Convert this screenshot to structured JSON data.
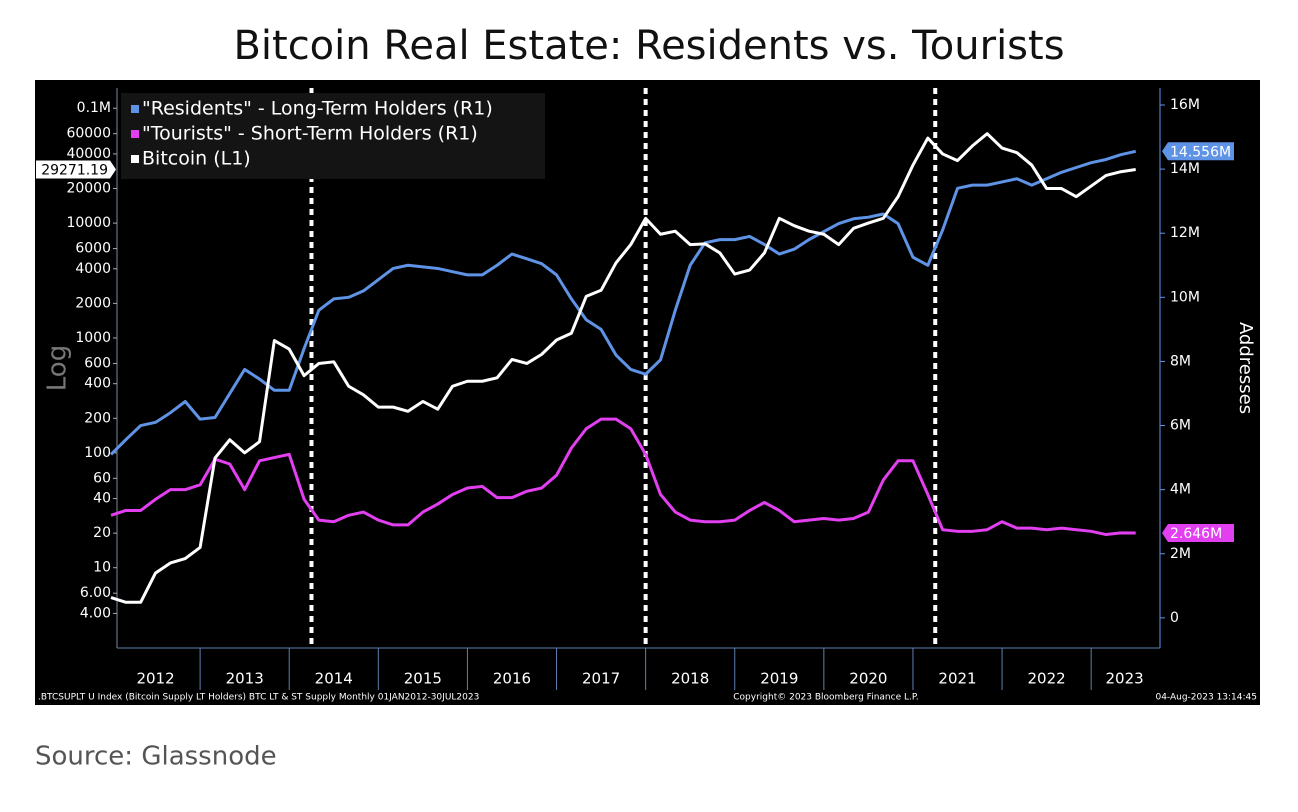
{
  "title": "Bitcoin Real Estate: Residents vs. Tourists",
  "source": "Source: Glassnode",
  "chart_data": {
    "type": "line",
    "ylabel": "Log",
    "y2label": "Addresses",
    "ylog": true,
    "legend": "top-left",
    "footer_left": ".BTCSUPLT U Index (Bitcoin Supply LT Holders) BTC LT & ST Supply  Monthly 01JAN2012-30JUL2023",
    "footer_center": "Copyright© 2023 Bloomberg Finance L.P.",
    "footer_right": "04-Aug-2023 13:14:45",
    "xlim": [
      2012,
      2023.75
    ],
    "xticks": [
      2012,
      2013,
      2014,
      2015,
      2016,
      2017,
      2018,
      2019,
      2020,
      2021,
      2022,
      2023
    ],
    "vlines": [
      2014.25,
      2018,
      2021.25
    ],
    "ylim": [
      2,
      150000
    ],
    "yticks": [
      {
        "value": 100000,
        "label": "0.1M"
      },
      60000,
      40000,
      20000,
      10000,
      6000,
      4000,
      2000,
      1000,
      600,
      400,
      200,
      100,
      60,
      40,
      20,
      10,
      {
        "value": 6,
        "label": "6.00"
      },
      {
        "value": 4,
        "label": "4.00"
      }
    ],
    "y2lim": [
      -940000,
      16530000
    ],
    "y2ticks": [
      {
        "value": 16000000,
        "label": "16M"
      },
      {
        "value": 14000000,
        "label": "14M"
      },
      {
        "value": 12000000,
        "label": "12M"
      },
      {
        "value": 10000000,
        "label": "10M"
      },
      {
        "value": 8000000,
        "label": "8M"
      },
      {
        "value": 6000000,
        "label": "6M"
      },
      {
        "value": 4000000,
        "label": "4M"
      },
      {
        "value": 2000000,
        "label": "2M"
      },
      0
    ],
    "x": [
      2012,
      2012.167,
      2012.333,
      2012.5,
      2012.667,
      2012.833,
      2013,
      2013.167,
      2013.333,
      2013.5,
      2013.667,
      2013.833,
      2014,
      2014.167,
      2014.333,
      2014.5,
      2014.667,
      2014.833,
      2015,
      2015.167,
      2015.333,
      2015.5,
      2015.667,
      2015.833,
      2016,
      2016.167,
      2016.333,
      2016.5,
      2016.667,
      2016.833,
      2017,
      2017.167,
      2017.333,
      2017.5,
      2017.667,
      2017.833,
      2018,
      2018.167,
      2018.333,
      2018.5,
      2018.667,
      2018.833,
      2019,
      2019.167,
      2019.333,
      2019.5,
      2019.667,
      2019.833,
      2020,
      2020.167,
      2020.333,
      2020.5,
      2020.667,
      2020.833,
      2021,
      2021.167,
      2021.333,
      2021.5,
      2021.667,
      2021.833,
      2022,
      2022.167,
      2022.333,
      2022.5,
      2022.667,
      2022.833,
      2023,
      2023.167,
      2023.333,
      2023.5
    ],
    "series": [
      {
        "name": "\"Residents\" - Long-Term Holders (R1)",
        "color": "#5f93e6",
        "axis": "y2",
        "last_label": true,
        "values": [
          5100000,
          5560000,
          6000000,
          6100000,
          6400000,
          6750000,
          6200000,
          6250000,
          7000000,
          7750000,
          7450000,
          7100000,
          7100000,
          8400000,
          9600000,
          9950000,
          10000000,
          10200000,
          10550000,
          10900000,
          11000000,
          10950000,
          10900000,
          10800000,
          10700000,
          10700000,
          11000000,
          11350000,
          11200000,
          11050000,
          10700000,
          9950000,
          9300000,
          9000000,
          8200000,
          7750000,
          7600000,
          8050000,
          9600000,
          11000000,
          11700000,
          11800000,
          11800000,
          11900000,
          11650000,
          11350000,
          11500000,
          11800000,
          12050000,
          12300000,
          12450000,
          12500000,
          12600000,
          12300000,
          11250000,
          11000000,
          12100000,
          13400000,
          13500000,
          13500000,
          13600000,
          13700000,
          13500000,
          13700000,
          13900000,
          14050000,
          14200000,
          14300000,
          14450000,
          14556000
        ],
        "value_labels": [
          null,
          null,
          null,
          null,
          null,
          null,
          null,
          null,
          null,
          null,
          null,
          null,
          null,
          null,
          null,
          null,
          null,
          null,
          null,
          null,
          null,
          null,
          null,
          null,
          null,
          null,
          null,
          null,
          null,
          null,
          null,
          null,
          null,
          null,
          null,
          null,
          null,
          null,
          null,
          null,
          null,
          null,
          null,
          null,
          null,
          null,
          null,
          null,
          null,
          null,
          null,
          null,
          null,
          null,
          null,
          null,
          null,
          null,
          null,
          null,
          null,
          null,
          null,
          null,
          null,
          null,
          null,
          null,
          null,
          "14.556M"
        ]
      },
      {
        "name": "\"Tourists\" - Short-Term Holders (R1)",
        "color": "#e23ff0",
        "axis": "y2",
        "last_label": true,
        "values": [
          3200000,
          3350000,
          3350000,
          3700000,
          4000000,
          4000000,
          4150000,
          4950000,
          4800000,
          4000000,
          4900000,
          5000000,
          5100000,
          3700000,
          3050000,
          3000000,
          3200000,
          3300000,
          3050000,
          2900000,
          2900000,
          3300000,
          3550000,
          3850000,
          4050000,
          4100000,
          3750000,
          3750000,
          3950000,
          4050000,
          4450000,
          5300000,
          5900000,
          6200000,
          6200000,
          5900000,
          5100000,
          3850000,
          3300000,
          3050000,
          3000000,
          3000000,
          3050000,
          3350000,
          3600000,
          3350000,
          3000000,
          3050000,
          3100000,
          3050000,
          3100000,
          3300000,
          4300000,
          4900000,
          4900000,
          3850000,
          2750000,
          2700000,
          2700000,
          2750000,
          3000000,
          2800000,
          2800000,
          2750000,
          2800000,
          2750000,
          2700000,
          2600000,
          2650000,
          2646000
        ],
        "value_labels": [
          null,
          null,
          null,
          null,
          null,
          null,
          null,
          null,
          null,
          null,
          null,
          null,
          null,
          null,
          null,
          null,
          null,
          null,
          null,
          null,
          null,
          null,
          null,
          null,
          null,
          null,
          null,
          null,
          null,
          null,
          null,
          null,
          null,
          null,
          null,
          null,
          null,
          null,
          null,
          null,
          null,
          null,
          null,
          null,
          null,
          null,
          null,
          null,
          null,
          null,
          null,
          null,
          null,
          null,
          null,
          null,
          null,
          null,
          null,
          null,
          null,
          null,
          null,
          null,
          null,
          null,
          null,
          null,
          null,
          "2.646M"
        ]
      },
      {
        "name": "Bitcoin (L1)",
        "color": "#ffffff",
        "axis": "y",
        "last_label": true,
        "values": [
          5.5,
          5,
          5,
          9,
          11,
          12,
          15,
          90,
          130,
          100,
          125,
          950,
          800,
          470,
          600,
          620,
          380,
          320,
          250,
          250,
          230,
          280,
          240,
          380,
          420,
          420,
          450,
          650,
          600,
          720,
          960,
          1100,
          2300,
          2600,
          4500,
          6500,
          11000,
          8000,
          8500,
          6500,
          6600,
          5500,
          3600,
          3900,
          5500,
          11000,
          9500,
          8500,
          8000,
          6500,
          9000,
          10000,
          11000,
          17000,
          32000,
          55000,
          40000,
          35000,
          47000,
          60000,
          45000,
          41000,
          32000,
          20000,
          20000,
          17000,
          21000,
          26000,
          28000,
          29271.19
        ]
      }
    ]
  }
}
